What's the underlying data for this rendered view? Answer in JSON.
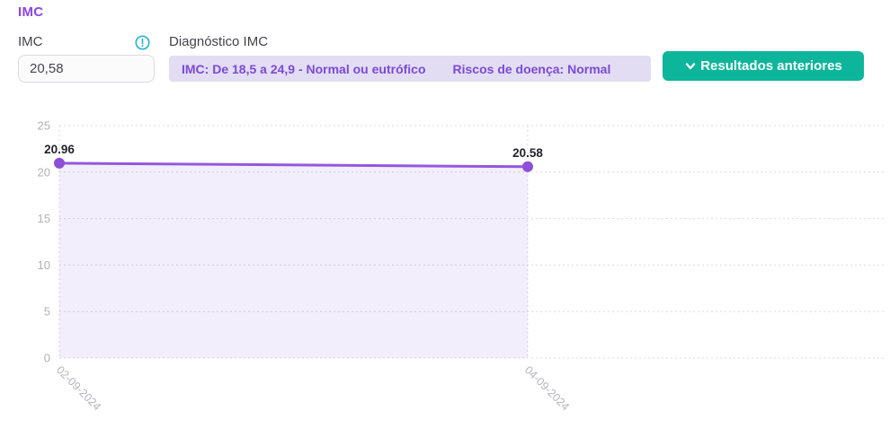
{
  "page_title": "IMC",
  "form": {
    "imc_label": "IMC",
    "imc_value": "20,58",
    "diagnostico_label": "Diagnóstico IMC",
    "diagnosis_range": "IMC: De 18,5 a 24,9 - Normal ou eutrófico",
    "diagnosis_risk": "Riscos de doença: Normal"
  },
  "actions": {
    "previous_results_label": "Resultados anteriores"
  },
  "icons": {
    "info": "alert-circle-icon",
    "chevron": "chevron-down-icon"
  },
  "colors": {
    "accent_purple": "#8b44e8",
    "banner_bg": "#e3ddf3",
    "banner_text": "#7b4ad8",
    "button_teal": "#0db69a",
    "info_icon_teal": "#2cb5d6",
    "line_purple": "#9458dd",
    "dot_purple": "#8c4fd8",
    "area_fill": "rgba(140,90,215,0.10)",
    "grid_gray": "#dbd9e0",
    "tick_text": "#b2b0ba",
    "point_label_text": "#25232b"
  },
  "chart_data": {
    "type": "line",
    "x": [
      "02-09-2024",
      "04-09-2024"
    ],
    "values": [
      20.96,
      20.58
    ],
    "point_labels": [
      "20.96",
      "20.58"
    ],
    "title": "",
    "xlabel": "",
    "ylabel": "",
    "ylim": [
      0,
      25
    ],
    "yticks": [
      0,
      5,
      10,
      15,
      20,
      25
    ],
    "grid": "dashed",
    "area": true,
    "legend": "none"
  }
}
